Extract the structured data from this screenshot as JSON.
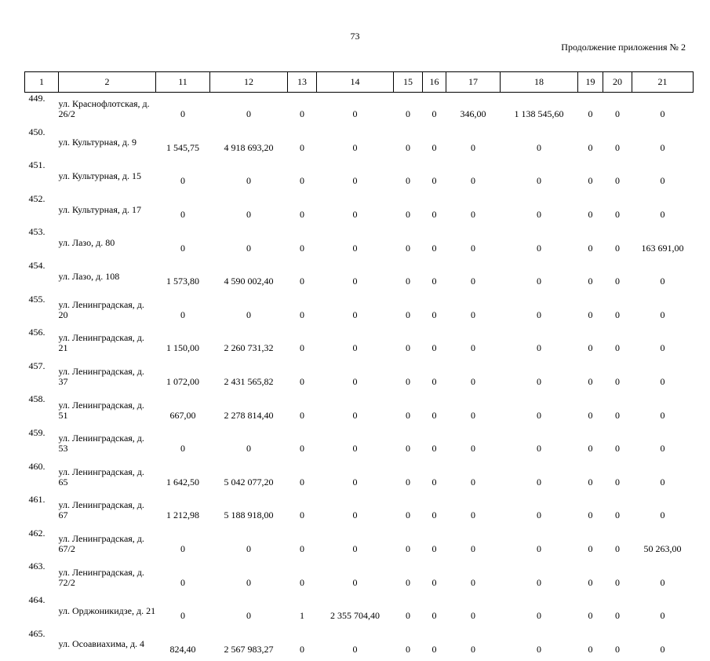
{
  "page": {
    "number": "73",
    "caption": "Продолжение приложения № 2"
  },
  "table": {
    "headers": [
      "1",
      "2",
      "11",
      "12",
      "13",
      "14",
      "15",
      "16",
      "17",
      "18",
      "19",
      "20",
      "21"
    ],
    "rows": [
      {
        "n": "449.",
        "addr": "ул. Краснофлотская, д. 26/2",
        "c11": "0",
        "c12": "0",
        "c13": "0",
        "c14": "0",
        "c15": "0",
        "c16": "0",
        "c17": "346,00",
        "c18": "1 138 545,60",
        "c19": "0",
        "c20": "0",
        "c21": "0"
      },
      {
        "n": "450.",
        "addr": "ул. Культурная, д. 9",
        "c11": "1 545,75",
        "c12": "4 918 693,20",
        "c13": "0",
        "c14": "0",
        "c15": "0",
        "c16": "0",
        "c17": "0",
        "c18": "0",
        "c19": "0",
        "c20": "0",
        "c21": "0"
      },
      {
        "n": "451.",
        "addr": "ул. Культурная, д. 15",
        "c11": "0",
        "c12": "0",
        "c13": "0",
        "c14": "0",
        "c15": "0",
        "c16": "0",
        "c17": "0",
        "c18": "0",
        "c19": "0",
        "c20": "0",
        "c21": "0"
      },
      {
        "n": "452.",
        "addr": "ул. Культурная, д. 17",
        "c11": "0",
        "c12": "0",
        "c13": "0",
        "c14": "0",
        "c15": "0",
        "c16": "0",
        "c17": "0",
        "c18": "0",
        "c19": "0",
        "c20": "0",
        "c21": "0"
      },
      {
        "n": "453.",
        "addr": "ул. Лазо, д. 80",
        "c11": "0",
        "c12": "0",
        "c13": "0",
        "c14": "0",
        "c15": "0",
        "c16": "0",
        "c17": "0",
        "c18": "0",
        "c19": "0",
        "c20": "0",
        "c21": "163 691,00"
      },
      {
        "n": "454.",
        "addr": "ул. Лазо, д. 108",
        "c11": "1 573,80",
        "c12": "4 590 002,40",
        "c13": "0",
        "c14": "0",
        "c15": "0",
        "c16": "0",
        "c17": "0",
        "c18": "0",
        "c19": "0",
        "c20": "0",
        "c21": "0"
      },
      {
        "n": "455.",
        "addr": "ул. Ленинградская, д. 20",
        "c11": "0",
        "c12": "0",
        "c13": "0",
        "c14": "0",
        "c15": "0",
        "c16": "0",
        "c17": "0",
        "c18": "0",
        "c19": "0",
        "c20": "0",
        "c21": "0"
      },
      {
        "n": "456.",
        "addr": "ул. Ленинградская, д. 21",
        "c11": "1 150,00",
        "c12": "2 260 731,32",
        "c13": "0",
        "c14": "0",
        "c15": "0",
        "c16": "0",
        "c17": "0",
        "c18": "0",
        "c19": "0",
        "c20": "0",
        "c21": "0"
      },
      {
        "n": "457.",
        "addr": "ул. Ленинградская, д. 37",
        "c11": "1 072,00",
        "c12": "2 431 565,82",
        "c13": "0",
        "c14": "0",
        "c15": "0",
        "c16": "0",
        "c17": "0",
        "c18": "0",
        "c19": "0",
        "c20": "0",
        "c21": "0"
      },
      {
        "n": "458.",
        "addr": "ул. Ленинградская, д. 51",
        "c11": "667,00",
        "c12": "2 278 814,40",
        "c13": "0",
        "c14": "0",
        "c15": "0",
        "c16": "0",
        "c17": "0",
        "c18": "0",
        "c19": "0",
        "c20": "0",
        "c21": "0"
      },
      {
        "n": "459.",
        "addr": "ул. Ленинградская, д. 53",
        "c11": "0",
        "c12": "0",
        "c13": "0",
        "c14": "0",
        "c15": "0",
        "c16": "0",
        "c17": "0",
        "c18": "0",
        "c19": "0",
        "c20": "0",
        "c21": "0"
      },
      {
        "n": "460.",
        "addr": "ул. Ленинградская, д. 65",
        "c11": "1 642,50",
        "c12": "5 042 077,20",
        "c13": "0",
        "c14": "0",
        "c15": "0",
        "c16": "0",
        "c17": "0",
        "c18": "0",
        "c19": "0",
        "c20": "0",
        "c21": "0"
      },
      {
        "n": "461.",
        "addr": "ул. Ленинградская, д. 67",
        "c11": "1 212,98",
        "c12": "5 188 918,00",
        "c13": "0",
        "c14": "0",
        "c15": "0",
        "c16": "0",
        "c17": "0",
        "c18": "0",
        "c19": "0",
        "c20": "0",
        "c21": "0"
      },
      {
        "n": "462.",
        "addr": "ул. Ленинградская, д. 67/2",
        "c11": "0",
        "c12": "0",
        "c13": "0",
        "c14": "0",
        "c15": "0",
        "c16": "0",
        "c17": "0",
        "c18": "0",
        "c19": "0",
        "c20": "0",
        "c21": "50 263,00"
      },
      {
        "n": "463.",
        "addr": "ул. Ленинградская, д. 72/2",
        "c11": "0",
        "c12": "0",
        "c13": "0",
        "c14": "0",
        "c15": "0",
        "c16": "0",
        "c17": "0",
        "c18": "0",
        "c19": "0",
        "c20": "0",
        "c21": "0"
      },
      {
        "n": "464.",
        "addr": "ул. Орджоникидзе, д. 21",
        "c11": "0",
        "c12": "0",
        "c13": "1",
        "c14": "2 355 704,40",
        "c15": "0",
        "c16": "0",
        "c17": "0",
        "c18": "0",
        "c19": "0",
        "c20": "0",
        "c21": "0"
      },
      {
        "n": "465.",
        "addr": "ул. Осоавиахима, д. 4",
        "c11": "824,40",
        "c12": "2 567 983,27",
        "c13": "0",
        "c14": "0",
        "c15": "0",
        "c16": "0",
        "c17": "0",
        "c18": "0",
        "c19": "0",
        "c20": "0",
        "c21": "0"
      }
    ]
  }
}
